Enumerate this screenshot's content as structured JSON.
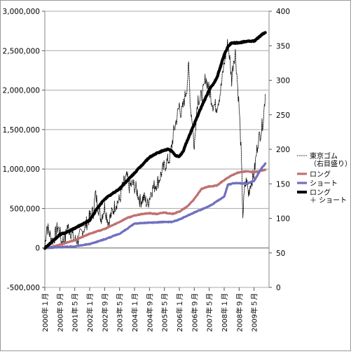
{
  "chart_data": {
    "type": "line",
    "title": "",
    "xlabel": "",
    "ylabel_left": "",
    "ylabel_right": "",
    "grid": "horizontal",
    "legend_position": "right",
    "x_tick_labels": [
      "2000年１月",
      "2000年９月",
      "2001年５月",
      "2002年１月",
      "2002年９月",
      "2003年５月",
      "2004年１月",
      "2004年９月",
      "2005年５月",
      "2006年１月",
      "2006年９月",
      "2007年５月",
      "2008年１月",
      "2008年９月",
      "2009年５月"
    ],
    "y_left": {
      "min": -500000,
      "max": 3000000,
      "step": 500000,
      "tick_labels": [
        "-500,000",
        "0",
        "500,000",
        "1,000,000",
        "1,500,000",
        "2,000,000",
        "2,500,000",
        "3,000,000"
      ]
    },
    "y_right": {
      "min": 0,
      "max": 400,
      "step": 50,
      "tick_labels": [
        "0",
        "50",
        "100",
        "150",
        "200",
        "250",
        "300",
        "350",
        "400"
      ]
    },
    "series": [
      {
        "name": "東京ゴム\n（右目盛り）",
        "axis": "right",
        "color": "#000000",
        "style": "dashed-thin",
        "points": [
          [
            "2000-01",
            60
          ],
          [
            "2000-02",
            90
          ],
          [
            "2000-03",
            82
          ],
          [
            "2000-04",
            74
          ],
          [
            "2000-05",
            68
          ],
          [
            "2000-06",
            72
          ],
          [
            "2000-08",
            88
          ],
          [
            "2000-09",
            80
          ],
          [
            "2000-10",
            66
          ],
          [
            "2000-12",
            72
          ],
          [
            "2001-01",
            88
          ],
          [
            "2001-03",
            80
          ],
          [
            "2001-05",
            68
          ],
          [
            "2001-07",
            70
          ],
          [
            "2002-01",
            102
          ],
          [
            "2002-03",
            110
          ],
          [
            "2002-04",
            135
          ],
          [
            "2002-06",
            112
          ],
          [
            "2002-07",
            100
          ],
          [
            "2002-09",
            117
          ],
          [
            "2002-11",
            95
          ],
          [
            "2003-01",
            108
          ],
          [
            "2003-03",
            122
          ],
          [
            "2003-05",
            126
          ],
          [
            "2003-07",
            150
          ],
          [
            "2003-09",
            160
          ],
          [
            "2003-10",
            145
          ],
          [
            "2003-12",
            150
          ],
          [
            "2004-02",
            142
          ],
          [
            "2004-04",
            125
          ],
          [
            "2004-06",
            130
          ],
          [
            "2004-08",
            120
          ],
          [
            "2004-10",
            140
          ],
          [
            "2004-12",
            148
          ],
          [
            "2005-02",
            155
          ],
          [
            "2005-04",
            170
          ],
          [
            "2005-06",
            180
          ],
          [
            "2005-08",
            188
          ],
          [
            "2005-10",
            225
          ],
          [
            "2005-12",
            250
          ],
          [
            "2006-01",
            265
          ],
          [
            "2006-02",
            250
          ],
          [
            "2006-03",
            262
          ],
          [
            "2006-05",
            290
          ],
          [
            "2006-06",
            320
          ],
          [
            "2006-07",
            260
          ],
          [
            "2006-08",
            240
          ],
          [
            "2006-09",
            198
          ],
          [
            "2006-10",
            250
          ],
          [
            "2006-11",
            275
          ],
          [
            "2006-12",
            272
          ],
          [
            "2007-02",
            285
          ],
          [
            "2007-03",
            305
          ],
          [
            "2007-05",
            285
          ],
          [
            "2007-07",
            265
          ],
          [
            "2007-09",
            262
          ],
          [
            "2007-11",
            283
          ],
          [
            "2008-01",
            325
          ],
          [
            "2008-03",
            355
          ],
          [
            "2008-04",
            330
          ],
          [
            "2008-05",
            300
          ],
          [
            "2008-06",
            330
          ],
          [
            "2008-07",
            340
          ],
          [
            "2008-08",
            300
          ],
          [
            "2008-09",
            260
          ],
          [
            "2008-10",
            200
          ],
          [
            "2008-11",
            105
          ],
          [
            "2008-12",
            145
          ],
          [
            "2009-01",
            155
          ],
          [
            "2009-02",
            135
          ],
          [
            "2009-03",
            150
          ],
          [
            "2009-05",
            165
          ],
          [
            "2009-07",
            210
          ],
          [
            "2009-09",
            230
          ],
          [
            "2009-10",
            245
          ],
          [
            "2009-11",
            280
          ]
        ]
      },
      {
        "name": "ロング",
        "axis": "left",
        "color": "#c07070",
        "style": "solid",
        "points": [
          [
            "2000-01",
            0
          ],
          [
            "2000-06",
            20000
          ],
          [
            "2000-09",
            40000
          ],
          [
            "2001-01",
            70000
          ],
          [
            "2001-05",
            100000
          ],
          [
            "2002-01",
            180000
          ],
          [
            "2002-09",
            240000
          ],
          [
            "2003-05",
            330000
          ],
          [
            "2003-09",
            380000
          ],
          [
            "2004-01",
            410000
          ],
          [
            "2004-05",
            430000
          ],
          [
            "2004-09",
            440000
          ],
          [
            "2005-01",
            430000
          ],
          [
            "2005-05",
            450000
          ],
          [
            "2005-09",
            430000
          ],
          [
            "2006-01",
            460000
          ],
          [
            "2006-05",
            520000
          ],
          [
            "2006-09",
            620000
          ],
          [
            "2007-01",
            750000
          ],
          [
            "2007-05",
            780000
          ],
          [
            "2007-09",
            790000
          ],
          [
            "2008-01",
            860000
          ],
          [
            "2008-05",
            920000
          ],
          [
            "2008-09",
            960000
          ],
          [
            "2009-01",
            970000
          ],
          [
            "2009-05",
            960000
          ],
          [
            "2009-09",
            980000
          ],
          [
            "2009-11",
            990000
          ]
        ]
      },
      {
        "name": "ショート",
        "axis": "left",
        "color": "#7070c0",
        "style": "solid",
        "points": [
          [
            "2000-01",
            0
          ],
          [
            "2000-09",
            10000
          ],
          [
            "2001-05",
            20000
          ],
          [
            "2002-01",
            50000
          ],
          [
            "2002-09",
            110000
          ],
          [
            "2003-05",
            180000
          ],
          [
            "2003-09",
            240000
          ],
          [
            "2004-01",
            310000
          ],
          [
            "2004-09",
            320000
          ],
          [
            "2005-05",
            330000
          ],
          [
            "2005-09",
            330000
          ],
          [
            "2006-01",
            360000
          ],
          [
            "2006-09",
            450000
          ],
          [
            "2007-01",
            490000
          ],
          [
            "2007-05",
            530000
          ],
          [
            "2008-01",
            650000
          ],
          [
            "2008-03",
            800000
          ],
          [
            "2008-06",
            820000
          ],
          [
            "2008-09",
            820000
          ],
          [
            "2009-01",
            815000
          ],
          [
            "2009-05",
            850000
          ],
          [
            "2009-09",
            1010000
          ],
          [
            "2009-11",
            1070000
          ]
        ]
      },
      {
        "name": "ロング\n＋ ショート",
        "axis": "left",
        "color": "#000000",
        "style": "solid-thick",
        "points": [
          [
            "2000-01",
            0
          ],
          [
            "2000-06",
            100000
          ],
          [
            "2000-09",
            170000
          ],
          [
            "2001-01",
            200000
          ],
          [
            "2001-05",
            250000
          ],
          [
            "2002-01",
            350000
          ],
          [
            "2002-05",
            500000
          ],
          [
            "2002-09",
            620000
          ],
          [
            "2003-05",
            750000
          ],
          [
            "2003-09",
            850000
          ],
          [
            "2004-01",
            950000
          ],
          [
            "2004-05",
            1050000
          ],
          [
            "2004-09",
            1150000
          ],
          [
            "2005-01",
            1200000
          ],
          [
            "2005-05",
            1240000
          ],
          [
            "2005-07",
            1250000
          ],
          [
            "2005-09",
            1230000
          ],
          [
            "2005-11",
            1170000
          ],
          [
            "2006-01",
            1160000
          ],
          [
            "2006-03",
            1220000
          ],
          [
            "2006-05",
            1350000
          ],
          [
            "2006-09",
            1570000
          ],
          [
            "2007-01",
            1800000
          ],
          [
            "2007-05",
            2000000
          ],
          [
            "2007-09",
            2150000
          ],
          [
            "2008-01",
            2450000
          ],
          [
            "2008-03",
            2550000
          ],
          [
            "2008-05",
            2600000
          ],
          [
            "2008-09",
            2600000
          ],
          [
            "2009-01",
            2620000
          ],
          [
            "2009-05",
            2620000
          ],
          [
            "2009-09",
            2700000
          ],
          [
            "2009-11",
            2730000
          ]
        ]
      }
    ]
  }
}
